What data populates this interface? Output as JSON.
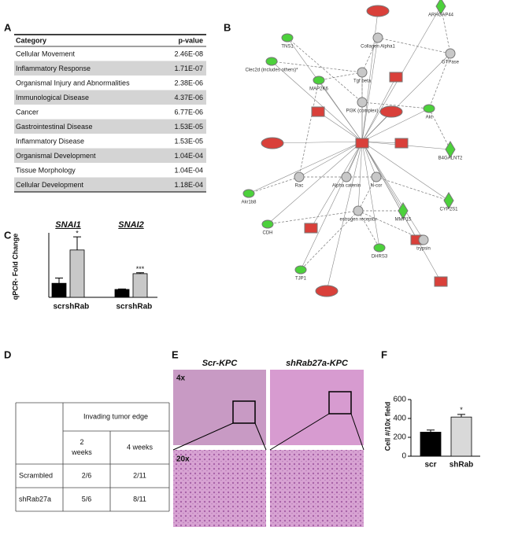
{
  "panels": {
    "a": "A",
    "b": "B",
    "c": "C",
    "d": "D",
    "e": "E",
    "f": "F"
  },
  "table_a": {
    "header": [
      "Category",
      "p-value"
    ],
    "rows": [
      [
        "Cellular Movement",
        "2.46E-08"
      ],
      [
        "Inflammatory Response",
        "1.71E-07"
      ],
      [
        "Organismal Injury and Abnormalities",
        "2.38E-06"
      ],
      [
        "Immunological Disease",
        "4.37E-06"
      ],
      [
        "Cancer",
        "6.77E-06"
      ],
      [
        "Gastrointestinal Disease",
        "1.53E-05"
      ],
      [
        "Inflammatory Disease",
        "1.53E-05"
      ],
      [
        "Organismal Development",
        "1.04E-04"
      ],
      [
        "Tissue Morphology",
        "1.04E-04"
      ],
      [
        "Cellular Development",
        "1.18E-04"
      ]
    ]
  },
  "network": {
    "nodes": [
      {
        "label": "ARHGAP44",
        "color": "green"
      },
      {
        "label": "TNS1",
        "color": "green"
      },
      {
        "label": "Collagen Alpha1",
        "color": "gray"
      },
      {
        "label": "GTPase",
        "color": "gray"
      },
      {
        "label": "Clec2d (includes others)*",
        "color": "green"
      },
      {
        "label": "MAP2K6",
        "color": "green"
      },
      {
        "label": "Tgf beta",
        "color": "gray"
      },
      {
        "label": "PI3K (complex)",
        "color": "gray"
      },
      {
        "label": "Akt",
        "color": "green"
      },
      {
        "label": "B4GALNT2",
        "color": "green"
      },
      {
        "label": "Akr1b8",
        "color": "green"
      },
      {
        "label": "Alpha catenin",
        "color": "gray"
      },
      {
        "label": "Rac",
        "color": "gray"
      },
      {
        "label": "N-cor",
        "color": "gray"
      },
      {
        "label": "estrogen receptor",
        "color": "gray"
      },
      {
        "label": "CYP2S1",
        "color": "green"
      },
      {
        "label": "CDH",
        "color": "green"
      },
      {
        "label": "DHRS3",
        "color": "green"
      },
      {
        "label": "MMP15",
        "color": "green"
      },
      {
        "label": "trypsin",
        "color": "gray"
      },
      {
        "label": "TJP1",
        "color": "green"
      }
    ]
  },
  "chart_data": [
    {
      "type": "bar",
      "y_label": "qPCR- Fold Change",
      "categories": [
        "scr",
        "shRab"
      ],
      "colors": [
        "#000000",
        "#c8c8c8"
      ],
      "ylim": [
        0,
        7
      ],
      "groups": [
        {
          "name": "SNAI1",
          "values": [
            1.6,
            5.4
          ],
          "errors": [
            0.6,
            1.5
          ],
          "annotations": [
            null,
            "*"
          ]
        },
        {
          "name": "SNAI2",
          "values": [
            0.9,
            2.7
          ],
          "errors": [
            0.05,
            0.1
          ],
          "annotations": [
            null,
            "***"
          ]
        }
      ]
    },
    {
      "type": "bar",
      "y_label": "Cell #/10x field",
      "categories": [
        "scr",
        "shRab"
      ],
      "colors": [
        "#000000",
        "#d9d9d9"
      ],
      "ylim": [
        0,
        600
      ],
      "yticks": [
        0,
        200,
        400,
        600
      ],
      "values": [
        255,
        415
      ],
      "errors": [
        22,
        28
      ],
      "annotations": [
        null,
        "*"
      ]
    }
  ],
  "table_d": {
    "header_group": "Invading tumor edge",
    "columns": [
      "2 weeks",
      "4 weeks"
    ],
    "rows": [
      [
        "Scrambled",
        "2/6",
        "2/11"
      ],
      [
        "shRab27a",
        "5/6",
        "8/11"
      ]
    ]
  },
  "micrographs": {
    "columns": [
      "Scr-KPC",
      "shRab27a-KPC"
    ],
    "rows": [
      "4x",
      "20x"
    ]
  }
}
